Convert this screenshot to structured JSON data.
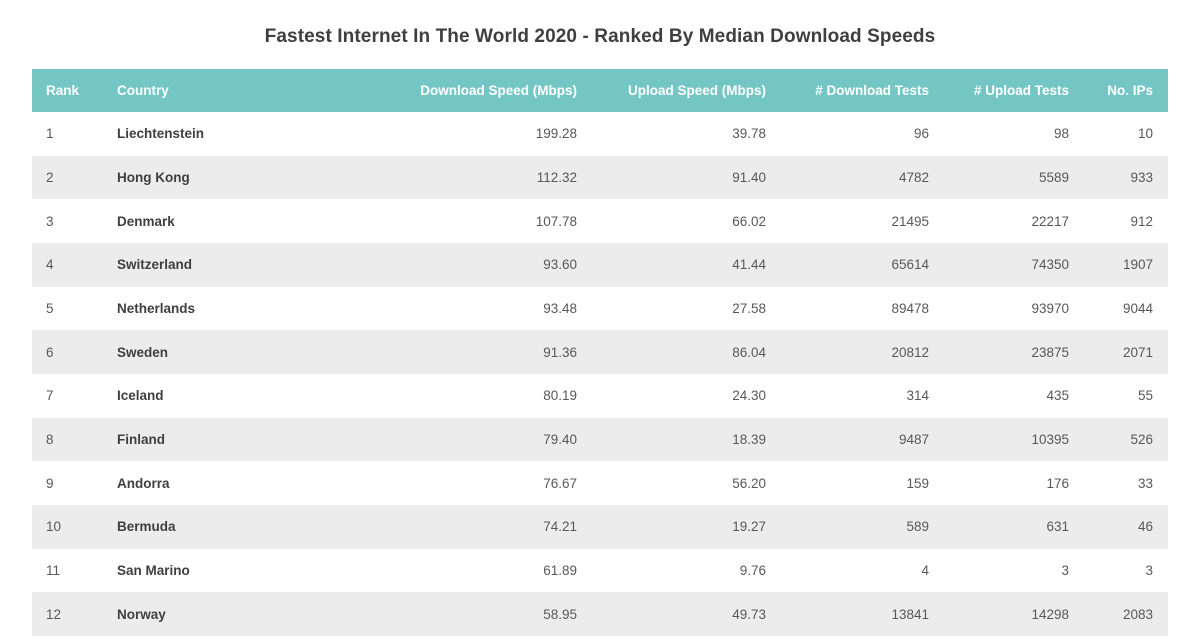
{
  "chart_data": {
    "type": "table",
    "title": "Fastest Internet In The World 2020 - Ranked By Median Download Speeds",
    "columns": [
      "Rank",
      "Country",
      "Download Speed (Mbps)",
      "Upload Speed (Mbps)",
      "# Download Tests",
      "# Upload Tests",
      "No. IPs"
    ],
    "rows": [
      [
        "1",
        "Liechtenstein",
        "199.28",
        "39.78",
        "96",
        "98",
        "10"
      ],
      [
        "2",
        "Hong Kong",
        "112.32",
        "91.40",
        "4782",
        "5589",
        "933"
      ],
      [
        "3",
        "Denmark",
        "107.78",
        "66.02",
        "21495",
        "22217",
        "912"
      ],
      [
        "4",
        "Switzerland",
        "93.60",
        "41.44",
        "65614",
        "74350",
        "1907"
      ],
      [
        "5",
        "Netherlands",
        "93.48",
        "27.58",
        "89478",
        "93970",
        "9044"
      ],
      [
        "6",
        "Sweden",
        "91.36",
        "86.04",
        "20812",
        "23875",
        "2071"
      ],
      [
        "7",
        "Iceland",
        "80.19",
        "24.30",
        "314",
        "435",
        "55"
      ],
      [
        "8",
        "Finland",
        "79.40",
        "18.39",
        "9487",
        "10395",
        "526"
      ],
      [
        "9",
        "Andorra",
        "76.67",
        "56.20",
        "159",
        "176",
        "33"
      ],
      [
        "10",
        "Bermuda",
        "74.21",
        "19.27",
        "589",
        "631",
        "46"
      ],
      [
        "11",
        "San Marino",
        "61.89",
        "9.76",
        "4",
        "3",
        "3"
      ],
      [
        "12",
        "Norway",
        "58.95",
        "49.73",
        "13841",
        "14298",
        "2083"
      ]
    ],
    "header_color": "#73c6c4",
    "stripe_color": "#ececec"
  }
}
